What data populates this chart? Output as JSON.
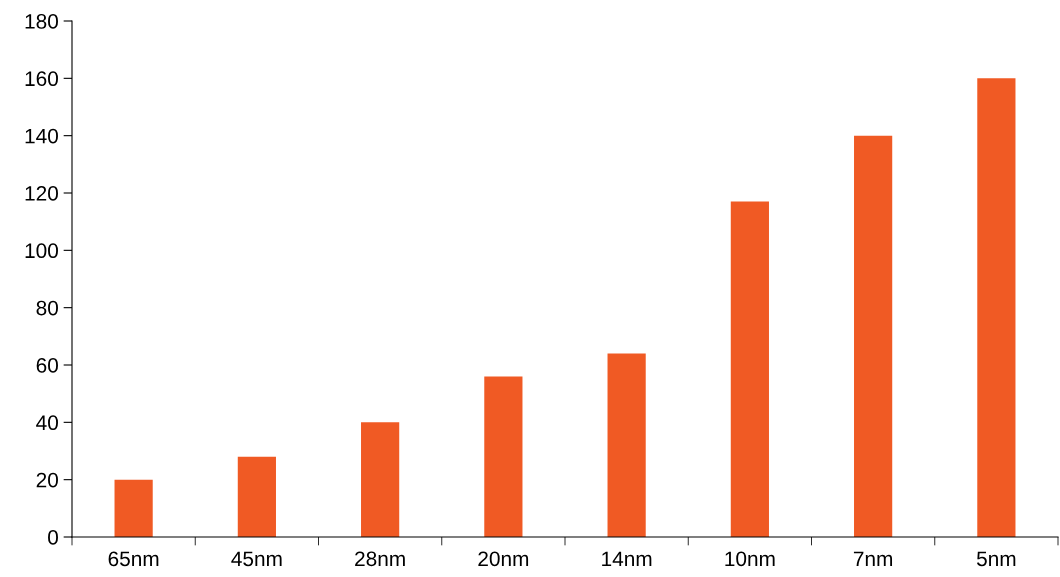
{
  "chart_data": {
    "type": "bar",
    "categories": [
      "65nm",
      "45nm",
      "28nm",
      "20nm",
      "14nm",
      "10nm",
      "7nm",
      "5nm"
    ],
    "values": [
      20,
      28,
      40,
      56,
      64,
      117,
      140,
      160
    ],
    "color": "#f05a24",
    "ylim": [
      0,
      180
    ],
    "yticks": [
      0,
      20,
      40,
      60,
      80,
      100,
      120,
      140,
      160,
      180
    ],
    "grid": false
  }
}
